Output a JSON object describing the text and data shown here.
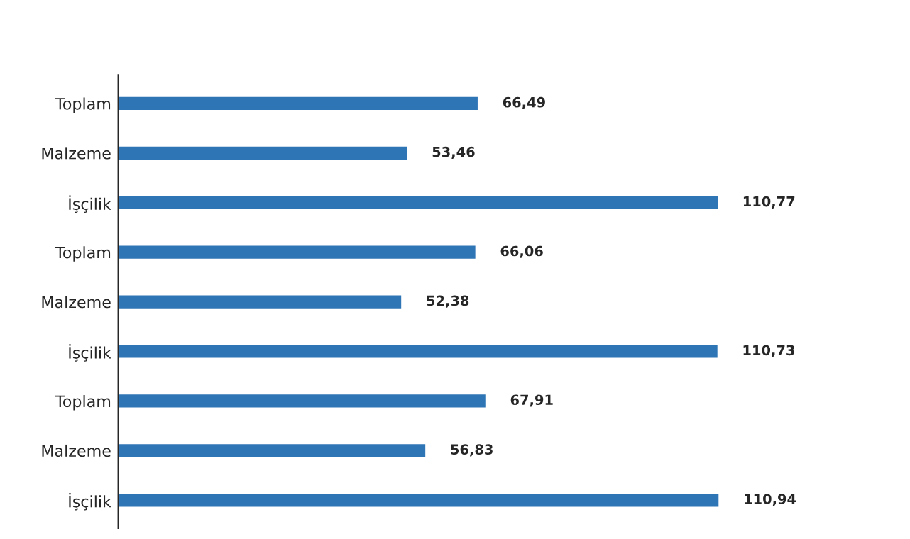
{
  "chart_data": {
    "type": "bar",
    "orientation": "horizontal",
    "categories": [
      "Toplam",
      "Malzeme",
      "İşçilik",
      "Toplam",
      "Malzeme",
      "İşçilik",
      "Toplam",
      "Malzeme",
      "İşçilik"
    ],
    "values": [
      66.49,
      53.46,
      110.77,
      66.06,
      52.38,
      110.73,
      67.91,
      56.83,
      110.94
    ],
    "value_labels": [
      "66,49",
      "53,46",
      "110,77",
      "66,06",
      "52,38",
      "110,73",
      "67,91",
      "56,83",
      "110,94"
    ],
    "color": "#2e75b6",
    "grid": false,
    "legend": false
  }
}
